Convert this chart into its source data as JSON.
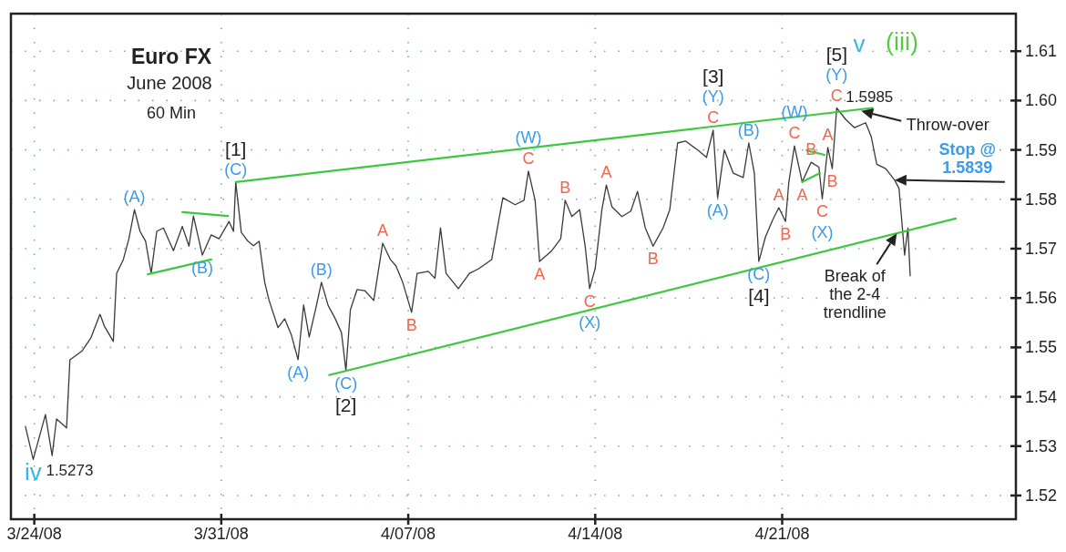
{
  "chart_data": {
    "type": "line",
    "title": "Euro FX",
    "subtitle": "June 2008",
    "xlim": [
      "2008-03-23T03:00",
      "2008-04-29T18:00"
    ],
    "xticks": [
      {
        "value": "2008-03-24",
        "label": "3/24/08"
      },
      {
        "value": "2008-03-31",
        "label": "3/31/08"
      },
      {
        "value": "2008-04-07",
        "label": "4/07/08"
      },
      {
        "value": "2008-04-14",
        "label": "4/14/08"
      },
      {
        "value": "2008-04-21",
        "label": "4/21/08"
      }
    ],
    "ylim": [
      1.5152,
      1.6176
    ],
    "yticks": [
      1.52,
      1.53,
      1.54,
      1.55,
      1.56,
      1.57,
      1.58,
      1.59,
      {
        "value": 1.6,
        "label": "1.60"
      },
      1.61
    ],
    "grid": true,
    "x": [
      "2008-03-23T16:00",
      "2008-03-23T23:00",
      "2008-03-24T10:00",
      "2008-03-24T16:00",
      "2008-03-24T20:00",
      "2008-03-25T05:00",
      "2008-03-25T08:00",
      "2008-03-25T19:00",
      "2008-03-26T03:00",
      "2008-03-26T11:00",
      "2008-03-26T15:00",
      "2008-03-26T23:00",
      "2008-03-27T02:00",
      "2008-03-27T08:00",
      "2008-03-27T13:00",
      "2008-03-27T18:00",
      "2008-03-27T23:00",
      "2008-03-28T04:00",
      "2008-03-28T09:00",
      "2008-03-28T14:00",
      "2008-03-28T20:00",
      "2008-03-29T05:00",
      "2008-03-29T13:00",
      "2008-03-29T19:00",
      "2008-03-29T23:00",
      "2008-03-30T07:00",
      "2008-03-30T15:00",
      "2008-03-30T22:00",
      "2008-03-31T07:00",
      "2008-03-31T11:00",
      "2008-03-31T13:00",
      "2008-03-31T18:00",
      "2008-04-01T00:00",
      "2008-04-01T05:00",
      "2008-04-01T10:00",
      "2008-04-01T15:00",
      "2008-04-01T19:00",
      "2008-04-02T03:00",
      "2008-04-02T09:00",
      "2008-04-02T15:00",
      "2008-04-02T21:00",
      "2008-04-03T02:00",
      "2008-04-03T07:00",
      "2008-04-03T13:00",
      "2008-04-03T18:00",
      "2008-04-04T00:00",
      "2008-04-04T06:00",
      "2008-04-04T12:00",
      "2008-04-04T16:00",
      "2008-04-04T20:00",
      "2008-04-05T02:00",
      "2008-04-05T09:00",
      "2008-04-05T17:00",
      "2008-04-06T01:00",
      "2008-04-06T08:00",
      "2008-04-06T13:00",
      "2008-04-06T19:00",
      "2008-04-07T03:00",
      "2008-04-07T08:00",
      "2008-04-07T18:00",
      "2008-04-08T00:00",
      "2008-04-08T05:00",
      "2008-04-08T10:00",
      "2008-04-08T21:00",
      "2008-04-09T07:00",
      "2008-04-09T15:00",
      "2008-04-10T03:00",
      "2008-04-10T13:00",
      "2008-04-11T00:00",
      "2008-04-11T08:00",
      "2008-04-11T12:00",
      "2008-04-11T18:00",
      "2008-04-11T22:00",
      "2008-04-12T09:00",
      "2008-04-12T17:00",
      "2008-04-12T21:00",
      "2008-04-13T03:00",
      "2008-04-13T10:00",
      "2008-04-13T15:00",
      "2008-04-13T19:00",
      "2008-04-14T00:00",
      "2008-04-14T06:00",
      "2008-04-14T10:00",
      "2008-04-14T15:00",
      "2008-04-15T00:00",
      "2008-04-15T08:00",
      "2008-04-15T14:00",
      "2008-04-15T21:00",
      "2008-04-16T04:00",
      "2008-04-16T13:00",
      "2008-04-16T19:00",
      "2008-04-17T02:00",
      "2008-04-17T09:00",
      "2008-04-17T20:00",
      "2008-04-18T04:00",
      "2008-04-18T10:00",
      "2008-04-18T14:00",
      "2008-04-18T20:00",
      "2008-04-19T04:00",
      "2008-04-19T13:00",
      "2008-04-19T18:00",
      "2008-04-19T23:00",
      "2008-04-20T03:00",
      "2008-04-20T09:00",
      "2008-04-20T16:00",
      "2008-04-20T21:00",
      "2008-04-21T03:00",
      "2008-04-21T06:00",
      "2008-04-21T11:00",
      "2008-04-21T18:00",
      "2008-04-22T02:00",
      "2008-04-22T09:00",
      "2008-04-22T12:00",
      "2008-04-22T17:00",
      "2008-04-22T21:00",
      "2008-04-23T01:00",
      "2008-04-23T09:00",
      "2008-04-23T17:00",
      "2008-04-24T03:00",
      "2008-04-24T08:00",
      "2008-04-24T13:00",
      "2008-04-24T21:00",
      "2008-04-25T05:00",
      "2008-04-25T09:00",
      "2008-04-25T12:00",
      "2008-04-25T14:00",
      "2008-04-25T17:00",
      "2008-04-25T19:00"
    ],
    "series": [
      {
        "color": "#3a3a3a",
        "values": [
          1.534,
          1.5273,
          1.5364,
          1.5281,
          1.5355,
          1.5337,
          1.5475,
          1.5493,
          1.552,
          1.5567,
          1.5543,
          1.5512,
          1.565,
          1.5678,
          1.572,
          1.5779,
          1.5735,
          1.5715,
          1.565,
          1.5735,
          1.5742,
          1.5696,
          1.5745,
          1.5705,
          1.5766,
          1.5687,
          1.5728,
          1.572,
          1.5755,
          1.5735,
          1.5835,
          1.5733,
          1.5715,
          1.5706,
          1.5715,
          1.5632,
          1.5595,
          1.554,
          1.5558,
          1.5525,
          1.5475,
          1.5586,
          1.5521,
          1.558,
          1.5632,
          1.5585,
          1.556,
          1.553,
          1.5453,
          1.5576,
          1.5617,
          1.5615,
          1.5595,
          1.5711,
          1.5678,
          1.5665,
          1.5632,
          1.5571,
          1.565,
          1.5654,
          1.564,
          1.5742,
          1.565,
          1.5619,
          1.565,
          1.5659,
          1.5678,
          1.5803,
          1.5789,
          1.5798,
          1.5857,
          1.5798,
          1.5674,
          1.5696,
          1.572,
          1.5798,
          1.5765,
          1.5779,
          1.5705,
          1.5619,
          1.566,
          1.5779,
          1.5829,
          1.5785,
          1.5765,
          1.5776,
          1.5816,
          1.5742,
          1.5705,
          1.5742,
          1.5779,
          1.5914,
          1.5918,
          1.59,
          1.5885,
          1.594,
          1.5803,
          1.59,
          1.5853,
          1.5844,
          1.5914,
          1.5853,
          1.5674,
          1.5724,
          1.5761,
          1.5783,
          1.5755,
          1.5835,
          1.5908,
          1.5835,
          1.5875,
          1.5865,
          1.5801,
          1.5905,
          1.5862,
          1.5985,
          1.5962,
          1.5945,
          1.5955,
          1.5927,
          1.5871,
          1.5862,
          1.5839,
          1.5822,
          1.5742,
          1.5687,
          1.5742,
          1.5645
        ],
        "value_labels": [
          null,
          "1.5273",
          null,
          null,
          null,
          null,
          null,
          null,
          null,
          null,
          null,
          null,
          null,
          null,
          null,
          null,
          null,
          null,
          null,
          null,
          null,
          null,
          null,
          null,
          null,
          null,
          null,
          null,
          null,
          null,
          null,
          null,
          null,
          null,
          null,
          null,
          null,
          null,
          null,
          null,
          null,
          null,
          null,
          null,
          null,
          null,
          null,
          null,
          null,
          null,
          null,
          null,
          null,
          null,
          null,
          null,
          null,
          null,
          null,
          null,
          null,
          null,
          null,
          null,
          null,
          null,
          null,
          null,
          null,
          null,
          null,
          null,
          null,
          null,
          null,
          null,
          null,
          null,
          null,
          null,
          null,
          null,
          null,
          null,
          null,
          null,
          null,
          null,
          null,
          null,
          null,
          null,
          null,
          null,
          null,
          null,
          null,
          null,
          null,
          null,
          null,
          null,
          null,
          null,
          null,
          null,
          null,
          null,
          null,
          null,
          null,
          null,
          null,
          null,
          null,
          "1.5985",
          null,
          null,
          null,
          null,
          null,
          null,
          null,
          null,
          null,
          null,
          null,
          null
        ]
      },
      {
        "type": "line",
        "color": "#3cc83c",
        "x": [
          "2008-03-31T13:00",
          "2008-04-24T09:00"
        ],
        "values": [
          1.5835,
          1.5985
        ]
      },
      {
        "type": "line",
        "color": "#3cc83c",
        "x": [
          "2008-04-04T01:00",
          "2008-04-27T12:00"
        ],
        "values": [
          1.5444,
          1.5761
        ]
      },
      {
        "type": "line",
        "color": "#3cc83c",
        "x": [
          "2008-03-29T13:00",
          "2008-03-31T06:00"
        ],
        "values": [
          1.5774,
          1.5766
        ]
      },
      {
        "type": "line",
        "color": "#3cc83c",
        "x": [
          "2008-03-28T06:00",
          "2008-03-30T15:00"
        ],
        "values": [
          1.5648,
          1.5678
        ]
      },
      {
        "type": "line",
        "color": "#3cc83c",
        "x": [
          "2008-04-21T22:00",
          "2008-04-22T14:00"
        ],
        "values": [
          1.5899,
          1.589
        ]
      },
      {
        "type": "line",
        "color": "#3cc83c",
        "x": [
          "2008-04-21T18:00",
          "2008-04-22T10:00"
        ],
        "values": [
          1.5835,
          1.5853
        ]
      }
    ],
    "annotations": [
      "60 Min",
      "v",
      "(iii)",
      {
        "text": "Throw-over",
        "x": "2008-04-23T23:00",
        "y": 1.5979
      },
      {
        "text": "Stop @\n1.5839",
        "x": "2008-04-25T05:00",
        "y": 1.5839
      },
      {
        "text": "Break of\nthe 2-4\ntrendline",
        "x": "2008-04-25T07:00",
        "y": 1.5731
      },
      {
        "text": "(A)",
        "x": "2008-03-27T18:00",
        "y": 1.5779
      },
      {
        "text": "(B)",
        "x": "2008-03-30T07:00",
        "y": 1.5687
      },
      {
        "text": "(C)",
        "x": "2008-03-31T13:00",
        "y": 1.5835
      },
      {
        "text": "[1]",
        "x": "2008-03-31T13:00",
        "y": 1.5835
      },
      {
        "text": "(A)",
        "x": "2008-04-02T21:00",
        "y": 1.5475
      },
      {
        "text": "(B)",
        "x": "2008-04-03T18:00",
        "y": 1.5632
      },
      {
        "text": "(C)",
        "x": "2008-04-04T16:00",
        "y": 1.5453
      },
      {
        "text": "[2]",
        "x": "2008-04-04T16:00",
        "y": 1.5453
      },
      {
        "text": "A",
        "x": "2008-04-06T01:00",
        "y": 1.5711
      },
      {
        "text": "B",
        "x": "2008-04-07T03:00",
        "y": 1.5571
      },
      {
        "text": "C",
        "x": "2008-04-11T12:00",
        "y": 1.5857
      },
      {
        "text": "(W)",
        "x": "2008-04-11T12:00",
        "y": 1.5857
      },
      {
        "text": "A",
        "x": "2008-04-11T22:00",
        "y": 1.5674
      },
      {
        "text": "B",
        "x": "2008-04-12T21:00",
        "y": 1.5798
      },
      {
        "text": "C",
        "x": "2008-04-13T19:00",
        "y": 1.5619
      },
      {
        "text": "(X)",
        "x": "2008-04-13T19:00",
        "y": 1.5619
      },
      {
        "text": "A",
        "x": "2008-04-14T10:00",
        "y": 1.5829
      },
      {
        "text": "B",
        "x": "2008-04-16T04:00",
        "y": 1.5705
      },
      {
        "text": "C",
        "x": "2008-04-18T10:00",
        "y": 1.594
      },
      {
        "text": "(Y)",
        "x": "2008-04-18T10:00",
        "y": 1.594
      },
      {
        "text": "[3]",
        "x": "2008-04-18T10:00",
        "y": 1.594
      },
      {
        "text": "(A)",
        "x": "2008-04-18T14:00",
        "y": 1.5803
      },
      {
        "text": "(B)",
        "x": "2008-04-19T18:00",
        "y": 1.5914
      },
      {
        "text": "(C)",
        "x": "2008-04-20T03:00",
        "y": 1.5674
      },
      {
        "text": "[4]",
        "x": "2008-04-20T03:00",
        "y": 1.5674
      },
      {
        "text": "A",
        "x": "2008-04-20T21:00",
        "y": 1.5783
      },
      {
        "text": "B",
        "x": "2008-04-21T03:00",
        "y": 1.5755
      },
      {
        "text": "C",
        "x": "2008-04-21T11:00",
        "y": 1.5908
      },
      {
        "text": "(W)",
        "x": "2008-04-21T11:00",
        "y": 1.5908
      },
      {
        "text": "A",
        "x": "2008-04-21T18:00",
        "y": 1.5835
      },
      {
        "text": "B",
        "x": "2008-04-22T02:00",
        "y": 1.5875
      },
      {
        "text": "C",
        "x": "2008-04-22T12:00",
        "y": 1.5801
      },
      {
        "text": "(X)",
        "x": "2008-04-22T12:00",
        "y": 1.5801
      },
      {
        "text": "A",
        "x": "2008-04-22T17:00",
        "y": 1.5905
      },
      {
        "text": "B",
        "x": "2008-04-22T21:00",
        "y": 1.5862
      },
      {
        "text": "C",
        "x": "2008-04-23T01:00",
        "y": 1.5985
      },
      {
        "text": "(Y)",
        "x": "2008-04-23T01:00",
        "y": 1.5985
      },
      {
        "text": "[5]",
        "x": "2008-04-23T01:00",
        "y": 1.5985
      },
      {
        "text": "iv",
        "x": "2008-03-23T23:00",
        "y": 1.5273
      }
    ]
  }
}
